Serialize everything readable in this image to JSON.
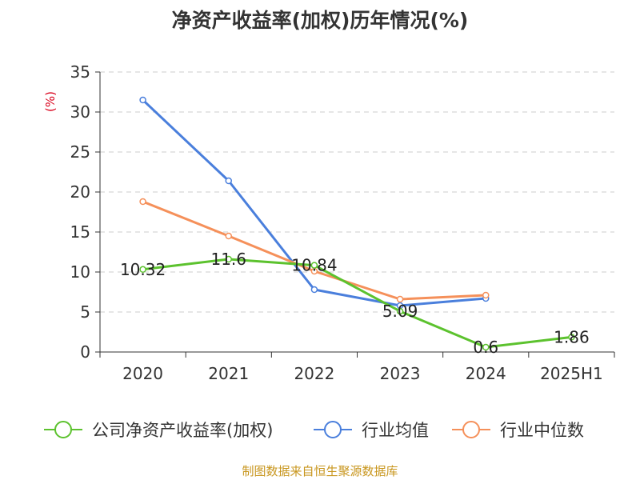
{
  "title": "净资产收益率(加权)历年情况(%)",
  "source": "制图数据来自恒生聚源数据库",
  "colors": {
    "company": "#5cc22e",
    "industry_avg": "#4a7fdc",
    "industry_median": "#f5905a",
    "unit": "#d9001b",
    "source": "#c8961e"
  },
  "chart_data": {
    "type": "line",
    "title": "净资产收益率(加权)历年情况(%)",
    "ylabel": "(%)",
    "xlabel": "",
    "categories": [
      "2020",
      "2021",
      "2022",
      "2023",
      "2024",
      "2025H1"
    ],
    "ylim": [
      0,
      35
    ],
    "yticks": [
      "0",
      "5",
      "10",
      "15",
      "20",
      "25",
      "30",
      "35"
    ],
    "grid": true,
    "legend_position": "bottom",
    "series": [
      {
        "name": "公司净资产收益率(加权)",
        "values": [
          10.32,
          11.6,
          10.84,
          5.09,
          0.6,
          1.86
        ],
        "labels": [
          "10.32",
          "11.6",
          "10.84",
          "5.09",
          "0.6",
          "1.86"
        ]
      },
      {
        "name": "行业均值",
        "values": [
          31.5,
          21.4,
          7.8,
          5.8,
          6.7,
          null
        ]
      },
      {
        "name": "行业中位数",
        "values": [
          18.8,
          14.5,
          10.1,
          6.6,
          7.1,
          null
        ]
      }
    ]
  }
}
